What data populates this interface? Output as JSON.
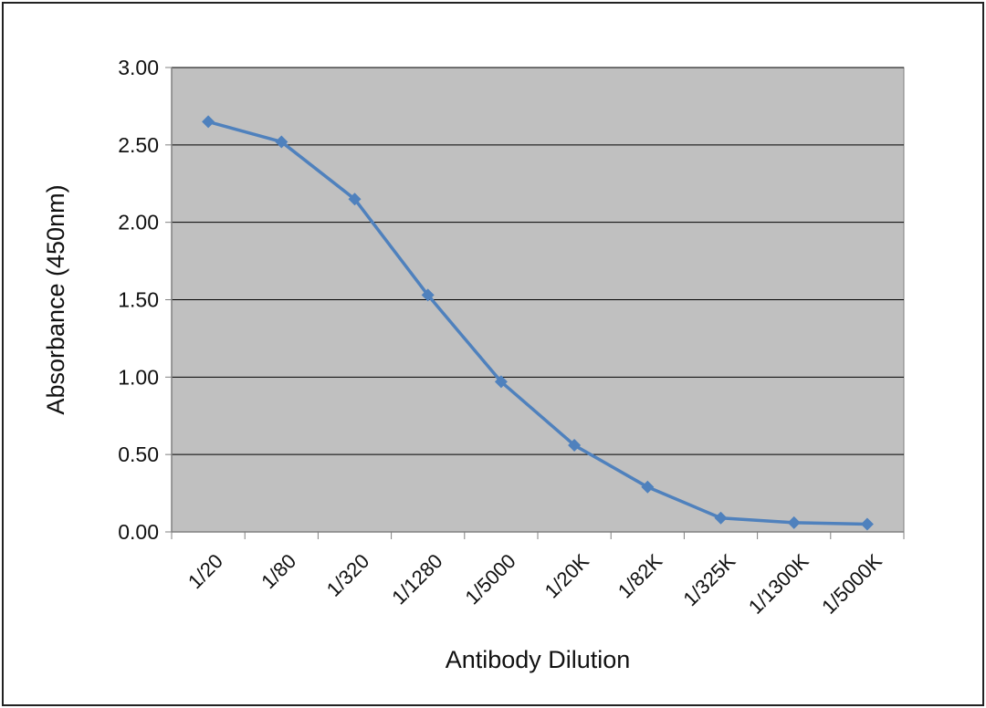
{
  "chart_data": {
    "type": "line",
    "categories": [
      "1/20",
      "1/80",
      "1/320",
      "1/1280",
      "1/5000",
      "1/20K",
      "1/82K",
      "1/325K",
      "1/1300K",
      "1/5000K"
    ],
    "series": [
      {
        "values": [
          2.65,
          2.52,
          2.15,
          1.53,
          0.97,
          0.56,
          0.29,
          0.09,
          0.06,
          0.05
        ]
      }
    ],
    "xlabel": "Antibody Dilution",
    "ylabel": "Absorbance (450nm)",
    "ylim": [
      0,
      3
    ],
    "yticks": [
      "0.00",
      "0.50",
      "1.00",
      "1.50",
      "2.00",
      "2.50",
      "3.00"
    ],
    "grid": true,
    "legend": "none",
    "colors": {
      "line": "#4f81bd",
      "plot_bg": "#c0c0c0",
      "grid": "#000000"
    }
  }
}
